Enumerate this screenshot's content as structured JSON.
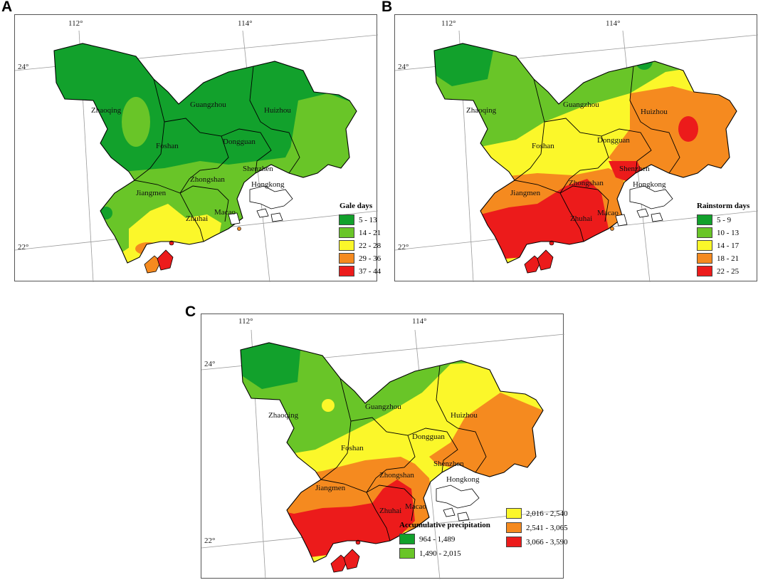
{
  "colors": {
    "dark_green": "#12a12c",
    "green": "#69c528",
    "yellow": "#fbf72a",
    "orange": "#f58a1f",
    "red": "#ec1b1b"
  },
  "panels": [
    {
      "letter": "A",
      "lon_labels": [
        "112°",
        "114°"
      ],
      "lat_labels": [
        "24°",
        "22°"
      ],
      "cities": [
        "Zhaoqing",
        "Guangzhou",
        "Huizhou",
        "Foshan",
        "Dongguan",
        "Shenzhen",
        "Jiangmen",
        "Zhongshan",
        "Hongkong",
        "Zhuhai",
        "Macao"
      ],
      "legend": {
        "title": "Gale days",
        "items": [
          "5 - 13",
          "14 - 21",
          "22 - 28",
          "29 - 36",
          "37 - 44"
        ]
      }
    },
    {
      "letter": "B",
      "lon_labels": [
        "112°",
        "114°"
      ],
      "lat_labels": [
        "24°",
        "22°"
      ],
      "cities": [
        "Zhaoqing",
        "Guangzhou",
        "Huizhou",
        "Foshan",
        "Dongguan",
        "Shenzhen",
        "Jiangmen",
        "Zhongshan",
        "Hongkong",
        "Zhuhai",
        "Macao"
      ],
      "legend": {
        "title": "Rainstorm days",
        "items": [
          "5 - 9",
          "10 - 13",
          "14 - 17",
          "18 - 21",
          "22 - 25"
        ]
      }
    },
    {
      "letter": "C",
      "lon_labels": [
        "112°",
        "114°"
      ],
      "lat_labels": [
        "24°",
        "22°"
      ],
      "cities": [
        "Zhaoqing",
        "Guangzhou",
        "Huizhou",
        "Foshan",
        "Dongguan",
        "Shenzhen",
        "Jiangmen",
        "Zhongshan",
        "Hongkong",
        "Zhuhai",
        "Macao"
      ],
      "legend": {
        "title": "Accumulative precipitation",
        "items": [
          "964 - 1,489",
          "1,490 - 2,015",
          "2,016 - 2,540",
          "2,541 - 3,065",
          "3,066 - 3,590"
        ]
      }
    }
  ]
}
